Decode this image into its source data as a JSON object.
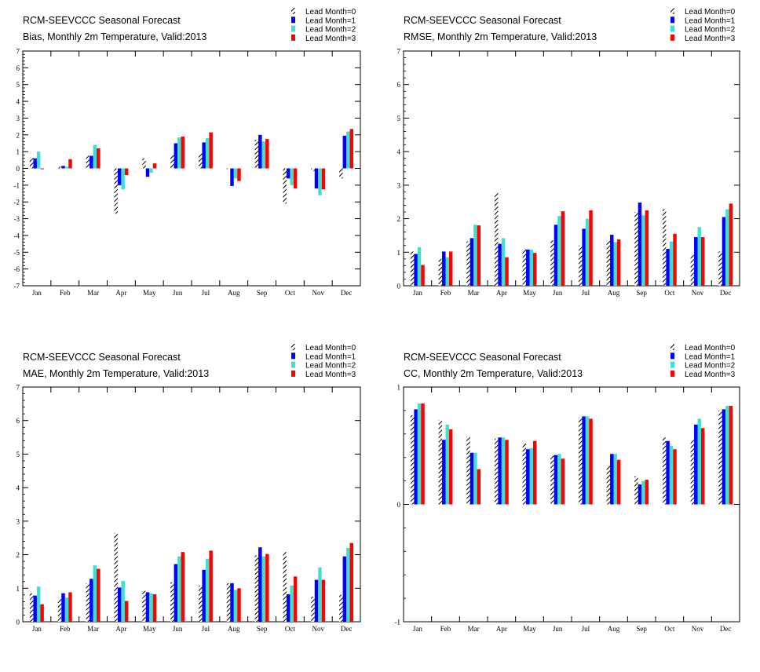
{
  "chart_data": [
    {
      "type": "bar",
      "title": "RCM-SEEVCCC Seasonal Forecast",
      "subtitle": "Bias, Monthly 2m Temperature, Valid:2013",
      "categories": [
        "Jan",
        "Feb",
        "Mar",
        "Apr",
        "May",
        "Jun",
        "Jul",
        "Aug",
        "Sep",
        "Oct",
        "Nov",
        "Dec"
      ],
      "ylim": [
        -7,
        7
      ],
      "yticks": [
        -7,
        -6,
        -5,
        -4,
        -3,
        -2,
        -1,
        0,
        1,
        2,
        3,
        4,
        5,
        6,
        7
      ],
      "legend_position": "top-right",
      "series": [
        {
          "name": "Lead Month=0",
          "values": [
            0.65,
            0.1,
            0.75,
            -2.7,
            0.6,
            0.8,
            0.9,
            -0.05,
            1.7,
            -2.1,
            -0.15,
            -0.6
          ]
        },
        {
          "name": "Lead Month=1",
          "values": [
            0.6,
            0.15,
            0.75,
            -1.0,
            -0.5,
            1.5,
            1.55,
            -1.05,
            2.0,
            -0.6,
            -1.2,
            1.95
          ]
        },
        {
          "name": "Lead Month=2",
          "values": [
            1.0,
            0.1,
            1.4,
            -1.25,
            -0.25,
            1.85,
            1.8,
            -0.6,
            1.6,
            -1.0,
            -1.6,
            2.2
          ]
        },
        {
          "name": "Lead Month=3",
          "values": [
            -0.05,
            0.55,
            1.2,
            -0.4,
            0.3,
            1.9,
            2.15,
            -0.75,
            1.75,
            -1.2,
            -1.25,
            2.35
          ]
        }
      ]
    },
    {
      "type": "bar",
      "title": "RCM-SEEVCCC Seasonal Forecast",
      "subtitle": "RMSE, Monthly 2m Temperature, Valid:2013",
      "categories": [
        "Jan",
        "Feb",
        "Mar",
        "Apr",
        "May",
        "Jun",
        "Jul",
        "Aug",
        "Sep",
        "Oct",
        "Nov",
        "Dec"
      ],
      "ylim": [
        0,
        7
      ],
      "yticks": [
        0,
        1,
        2,
        3,
        4,
        5,
        6,
        7
      ],
      "legend_position": "top-right",
      "series": [
        {
          "name": "Lead Month=0",
          "values": [
            1.02,
            0.8,
            1.32,
            2.78,
            1.08,
            1.35,
            1.2,
            1.35,
            2.2,
            2.28,
            0.92,
            1.02
          ]
        },
        {
          "name": "Lead Month=1",
          "values": [
            0.95,
            1.02,
            1.42,
            1.25,
            1.08,
            1.82,
            1.7,
            1.52,
            2.48,
            1.1,
            1.45,
            2.05
          ]
        },
        {
          "name": "Lead Month=2",
          "values": [
            1.15,
            0.85,
            1.82,
            1.42,
            1.08,
            2.08,
            2.0,
            1.3,
            2.1,
            1.32,
            1.75,
            2.28
          ]
        },
        {
          "name": "Lead Month=3",
          "values": [
            0.62,
            1.02,
            1.8,
            0.85,
            0.98,
            2.22,
            2.25,
            1.38,
            2.25,
            1.55,
            1.45,
            2.45
          ]
        }
      ]
    },
    {
      "type": "bar",
      "title": "RCM-SEEVCCC Seasonal Forecast",
      "subtitle": "MAE, Monthly 2m Temperature, Valid:2013",
      "categories": [
        "Jan",
        "Feb",
        "Mar",
        "Apr",
        "May",
        "Jun",
        "Jul",
        "Aug",
        "Sep",
        "Oct",
        "Nov",
        "Dec"
      ],
      "ylim": [
        0,
        7
      ],
      "yticks": [
        0,
        1,
        2,
        3,
        4,
        5,
        6,
        7
      ],
      "legend_position": "top-right",
      "series": [
        {
          "name": "Lead Month=0",
          "values": [
            0.85,
            0.68,
            1.15,
            2.65,
            0.92,
            1.18,
            1.08,
            1.15,
            1.98,
            2.08,
            0.75,
            0.8
          ]
        },
        {
          "name": "Lead Month=1",
          "values": [
            0.78,
            0.85,
            1.28,
            1.02,
            0.88,
            1.72,
            1.55,
            1.15,
            2.22,
            0.82,
            1.25,
            1.95
          ]
        },
        {
          "name": "Lead Month=2",
          "values": [
            1.05,
            0.72,
            1.68,
            1.22,
            0.85,
            1.95,
            1.88,
            0.95,
            1.95,
            1.08,
            1.62,
            2.2
          ]
        },
        {
          "name": "Lead Month=3",
          "values": [
            0.52,
            0.88,
            1.58,
            0.62,
            0.82,
            2.08,
            2.12,
            1.0,
            2.02,
            1.35,
            1.25,
            2.35
          ]
        }
      ]
    },
    {
      "type": "bar",
      "title": "RCM-SEEVCCC Seasonal Forecast",
      "subtitle": "CC, Monthly 2m Temperature, Valid:2013",
      "categories": [
        "Jan",
        "Feb",
        "Mar",
        "Apr",
        "May",
        "Jun",
        "Jul",
        "Aug",
        "Sep",
        "Oct",
        "Nov",
        "Dec"
      ],
      "ylim": [
        -1,
        1
      ],
      "yticks": [
        -1,
        0,
        1
      ],
      "legend_position": "top-right",
      "series": [
        {
          "name": "Lead Month=0",
          "values": [
            0.76,
            0.72,
            0.58,
            0.56,
            0.52,
            0.42,
            0.74,
            0.33,
            0.24,
            0.57,
            0.55,
            0.8
          ]
        },
        {
          "name": "Lead Month=1",
          "values": [
            0.81,
            0.55,
            0.44,
            0.57,
            0.47,
            0.42,
            0.75,
            0.43,
            0.17,
            0.54,
            0.68,
            0.81
          ]
        },
        {
          "name": "Lead Month=2",
          "values": [
            0.86,
            0.68,
            0.44,
            0.57,
            0.48,
            0.43,
            0.75,
            0.43,
            0.2,
            0.5,
            0.73,
            0.84
          ]
        },
        {
          "name": "Lead Month=3",
          "values": [
            0.86,
            0.64,
            0.3,
            0.55,
            0.54,
            0.39,
            0.73,
            0.38,
            0.21,
            0.47,
            0.65,
            0.84
          ]
        }
      ]
    }
  ],
  "colors": {
    "series": [
      "#000000",
      "#0000ff",
      "#40e0d0",
      "#ff0000"
    ],
    "hatch": "#000000"
  }
}
